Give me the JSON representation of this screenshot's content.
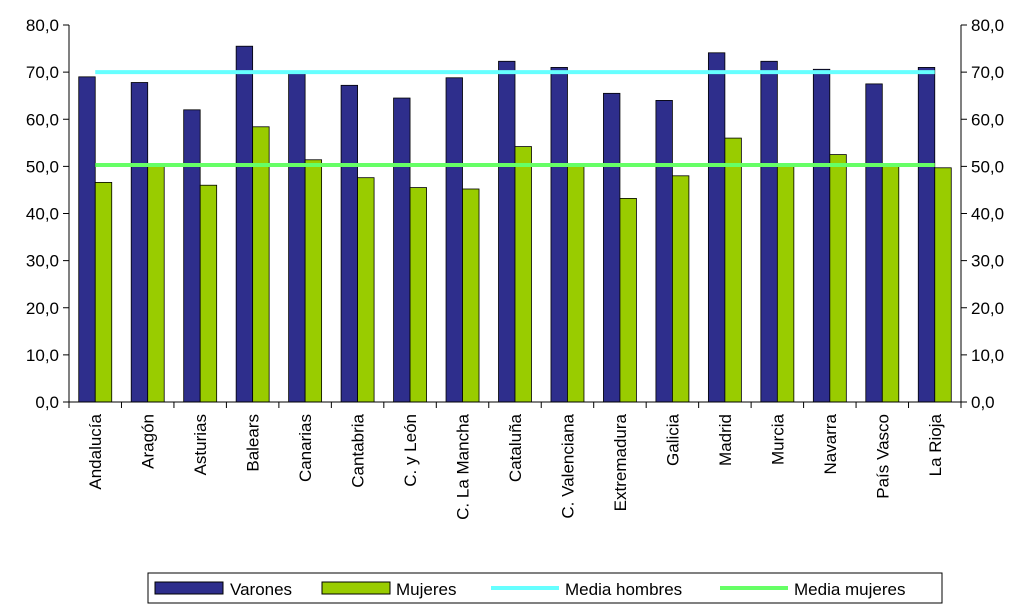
{
  "chart_data": {
    "type": "bar",
    "categories": [
      "Andalucía",
      "Aragón",
      "Asturias",
      "Balears",
      "Canarias",
      "Cantabria",
      "C. y León",
      "C. La Mancha",
      "Cataluña",
      "C. Valenciana",
      "Extremadura",
      "Galicia",
      "Madrid",
      "Murcia",
      "Navarra",
      "País Vasco",
      "La Rioja"
    ],
    "series": [
      {
        "name": "Varones",
        "color": "#2E2E8C",
        "values": [
          69.0,
          67.8,
          62.0,
          75.5,
          69.8,
          67.2,
          64.5,
          68.8,
          72.3,
          71.0,
          65.5,
          64.0,
          74.1,
          72.3,
          70.6,
          67.5,
          71.0
        ]
      },
      {
        "name": "Mujeres",
        "color": "#99CC00",
        "values": [
          46.6,
          50.3,
          46.0,
          58.4,
          51.4,
          47.6,
          45.5,
          45.2,
          54.2,
          50.2,
          43.2,
          48.0,
          56.0,
          50.5,
          52.5,
          50.0,
          49.7
        ]
      }
    ],
    "lines": [
      {
        "name": "Media hombres",
        "color": "#66FFFF",
        "value": 70.0
      },
      {
        "name": "Media mujeres",
        "color": "#66FF66",
        "value": 50.3
      }
    ],
    "ylim": [
      0,
      80
    ],
    "yticks": [
      "0,0",
      "10,0",
      "20,0",
      "30,0",
      "40,0",
      "50,0",
      "60,0",
      "70,0",
      "80,0"
    ],
    "grid": false,
    "legend_position": "bottom",
    "xlabel": "",
    "ylabel": ""
  }
}
